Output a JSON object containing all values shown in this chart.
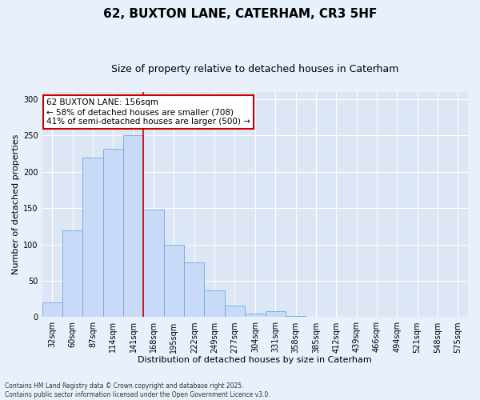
{
  "title_line1": "62, BUXTON LANE, CATERHAM, CR3 5HF",
  "title_line2": "Size of property relative to detached houses in Caterham",
  "xlabel": "Distribution of detached houses by size in Caterham",
  "ylabel": "Number of detached properties",
  "categories": [
    "32sqm",
    "60sqm",
    "87sqm",
    "114sqm",
    "141sqm",
    "168sqm",
    "195sqm",
    "222sqm",
    "249sqm",
    "277sqm",
    "304sqm",
    "331sqm",
    "358sqm",
    "385sqm",
    "412sqm",
    "439sqm",
    "466sqm",
    "494sqm",
    "521sqm",
    "548sqm",
    "575sqm"
  ],
  "values": [
    20,
    119,
    220,
    232,
    250,
    148,
    100,
    75,
    37,
    16,
    5,
    8,
    2,
    0,
    0,
    0,
    0,
    0,
    0,
    1,
    0
  ],
  "bar_color": "#c9daf8",
  "bar_edge_color": "#6fa8dc",
  "vline_x": 4.5,
  "vline_color": "#cc0000",
  "annotation_text": "62 BUXTON LANE: 156sqm\n← 58% of detached houses are smaller (708)\n41% of semi-detached houses are larger (500) →",
  "annotation_box_color": "#ffffff",
  "annotation_box_edge_color": "#cc0000",
  "ylim": [
    0,
    310
  ],
  "yticks": [
    0,
    50,
    100,
    150,
    200,
    250,
    300
  ],
  "background_color": "#e8f0fb",
  "plot_background_color": "#dce6f5",
  "grid_color": "#ffffff",
  "footnote": "Contains HM Land Registry data © Crown copyright and database right 2025.\nContains public sector information licensed under the Open Government Licence v3.0.",
  "title_fontsize": 11,
  "subtitle_fontsize": 9,
  "axis_label_fontsize": 8,
  "tick_fontsize": 7,
  "annotation_fontsize": 7.5
}
